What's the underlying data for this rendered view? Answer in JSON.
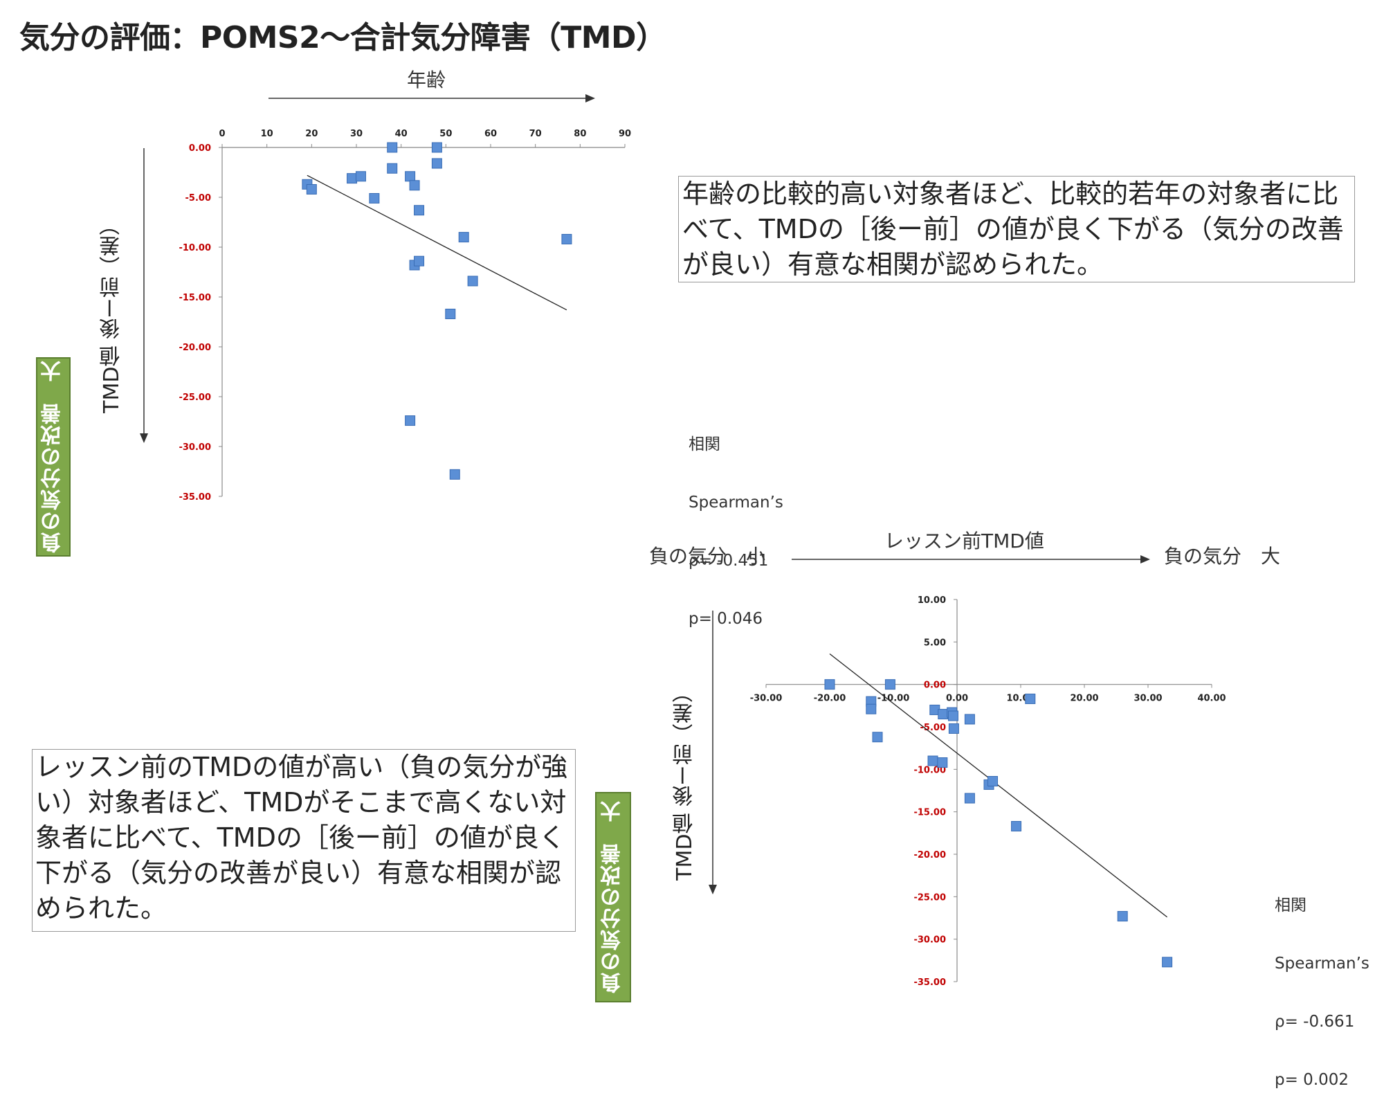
{
  "title": "気分の評価：POMS2～合計気分障害（TMD）",
  "chart1": {
    "top_axis_label": "年齢",
    "left_axis_label": "TMD値 後ー前（差）",
    "green_label": "負の気分の改善　大",
    "annotation": "年齢の比較的高い対象者ほど、比較的若年の対象者に比べて、TMDの［後ー前］の値が良く下がる（気分の改善が良い）有意な相関が認められた。",
    "stats": {
      "heading": "相関",
      "method": "Spearman’s",
      "rho": "ρ= -0.451",
      "p": "p= 0.046"
    }
  },
  "chart2": {
    "top_axis_label": "レッスン前TMD値",
    "left_end_label": "負の気分　小",
    "right_end_label": "負の気分　大",
    "left_axis_label": "TMD値 後ー前（差）",
    "green_label": "負の気分の改善　大",
    "annotation": "レッスン前のTMDの値が高い（負の気分が強い）対象者ほど、TMDがそこまで高くない対象者に比べて、TMDの［後ー前］の値が良く下がる（気分の改善が良い）有意な相関が認められた。",
    "stats": {
      "heading": "相関",
      "method": "Spearman’s",
      "rho": "ρ= -0.661",
      "p": "p= 0.002"
    }
  },
  "colors": {
    "marker": "#5b8fd6",
    "marker_stroke": "#3a6db5",
    "y_tick": "#c00000",
    "x_tick": "#222222"
  },
  "chart_data": [
    {
      "type": "scatter",
      "xlabel": "年齢",
      "ylabel": "TMD値 後ー前（差）",
      "xlim": [
        0,
        90
      ],
      "ylim": [
        -35,
        0
      ],
      "x_ticks": [
        "0",
        "10",
        "20",
        "30",
        "40",
        "50",
        "60",
        "70",
        "80",
        "90"
      ],
      "y_ticks": [
        "0.00",
        "-5.00",
        "-10.00",
        "-15.00",
        "-20.00",
        "-25.00",
        "-30.00",
        "-35.00"
      ],
      "points": [
        [
          19,
          -3.7
        ],
        [
          20,
          -4.2
        ],
        [
          29,
          -3.1
        ],
        [
          31,
          -2.9
        ],
        [
          34,
          -5.1
        ],
        [
          38,
          -2.1
        ],
        [
          38,
          0
        ],
        [
          42,
          -2.9
        ],
        [
          43,
          -3.8
        ],
        [
          43,
          -11.8
        ],
        [
          44,
          -11.4
        ],
        [
          44,
          -6.3
        ],
        [
          48,
          0
        ],
        [
          48,
          -1.6
        ],
        [
          51,
          -16.7
        ],
        [
          54,
          -9.0
        ],
        [
          56,
          -13.4
        ],
        [
          77,
          -9.2
        ],
        [
          42,
          -27.4
        ],
        [
          52,
          -32.8
        ]
      ],
      "trendline": [
        [
          19,
          -2.8
        ],
        [
          77,
          -16.3
        ]
      ]
    },
    {
      "type": "scatter",
      "xlabel": "レッスン前TMD値",
      "ylabel": "TMD値 後ー前（差）",
      "xlim": [
        -30,
        40
      ],
      "ylim": [
        -35,
        10
      ],
      "x_ticks": [
        "-30.00",
        "-20.00",
        "-10.00",
        "0.00",
        "10.00",
        "20.00",
        "30.00",
        "40.00"
      ],
      "y_ticks": [
        "10.00",
        "5.00",
        "0.00",
        "-5.00",
        "-10.00",
        "-15.00",
        "-20.00",
        "-25.00",
        "-30.00",
        "-35.00"
      ],
      "points": [
        [
          -20,
          0
        ],
        [
          -10.5,
          0
        ],
        [
          -13.5,
          -2
        ],
        [
          -13.5,
          -2.9
        ],
        [
          -12.5,
          -6.2
        ],
        [
          -3.5,
          -3
        ],
        [
          -2.2,
          -3.5
        ],
        [
          -0.8,
          -3.3
        ],
        [
          -0.6,
          -3.7
        ],
        [
          -0.5,
          -5.2
        ],
        [
          2,
          -4.1
        ],
        [
          11.5,
          -1.7
        ],
        [
          -3.8,
          -9.0
        ],
        [
          -2.3,
          -9.2
        ],
        [
          2,
          -13.4
        ],
        [
          5,
          -11.8
        ],
        [
          5.6,
          -11.4
        ],
        [
          9.3,
          -16.7
        ],
        [
          26,
          -27.3
        ],
        [
          33,
          -32.7
        ]
      ],
      "trendline": [
        [
          -20,
          3.6
        ],
        [
          33,
          -27.4
        ]
      ]
    }
  ]
}
